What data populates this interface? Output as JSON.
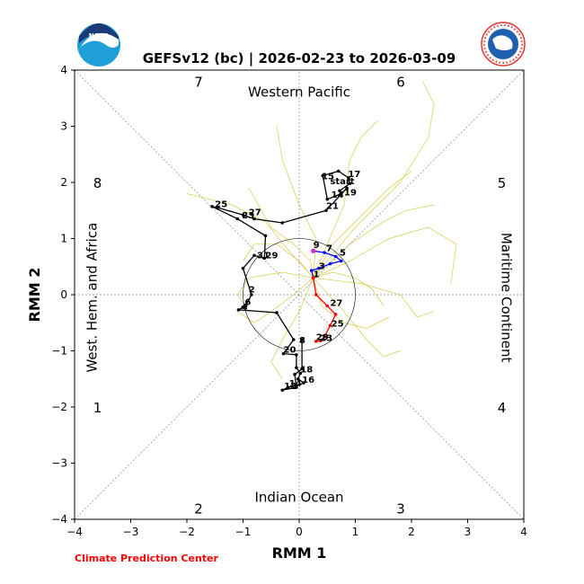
{
  "logos": {
    "left_text": "NOAA",
    "right_text": "NATIONAL WEATHER SERVICE"
  },
  "footer_credit": "Climate Prediction Center",
  "colors": {
    "trajectory_main": "#000000",
    "forecast_early": "#0000ff",
    "forecast_late": "#ff0000",
    "start_point": "#cc33cc",
    "ensemble": "#d4cc4a",
    "footer": "#ff0000"
  },
  "chart_data": {
    "type": "scatter",
    "title": "GEFSv12 (bc) | 2026-02-23 to 2026-03-09",
    "xlabel": "RMM 1",
    "ylabel": "RMM 2",
    "xlim": [
      -4,
      4
    ],
    "ylim": [
      -4,
      4
    ],
    "xticks": [
      "−4",
      "−3",
      "−2",
      "−1",
      "0",
      "1",
      "2",
      "3",
      "4"
    ],
    "yticks": [
      "−4",
      "−3",
      "−2",
      "−1",
      "0",
      "1",
      "2",
      "3",
      "4"
    ],
    "phase_numbers": [
      {
        "label": "1",
        "x": -3.8,
        "y": -2.0
      },
      {
        "label": "2",
        "x": -2.0,
        "y": -3.8
      },
      {
        "label": "3",
        "x": 2.0,
        "y": -3.8
      },
      {
        "label": "4",
        "x": 3.8,
        "y": -2.0
      },
      {
        "label": "5",
        "x": 3.8,
        "y": 2.0
      },
      {
        "label": "6",
        "x": 2.0,
        "y": 3.8
      },
      {
        "label": "7",
        "x": -2.0,
        "y": 3.8
      },
      {
        "label": "8",
        "x": -3.8,
        "y": 2.0
      }
    ],
    "region_labels": [
      {
        "label": "Western Pacific",
        "x": 0.0,
        "y": 3.8,
        "rotate": 0
      },
      {
        "label": "Indian Ocean",
        "x": 0.0,
        "y": -3.8,
        "rotate": 0
      },
      {
        "label": "Maritime Continent",
        "x": 3.8,
        "y": -0.05,
        "rotate": 90
      },
      {
        "label": "West. Hem. and Africa",
        "x": -3.8,
        "y": -0.05,
        "rotate": -90
      }
    ],
    "observed": {
      "name": "",
      "points": [
        [
          0.72,
          1.85
        ],
        [
          0.9,
          1.98
        ],
        [
          0.88,
          2.08
        ],
        [
          0.7,
          2.2
        ],
        [
          0.42,
          2.12
        ],
        [
          0.5,
          1.7
        ],
        [
          0.75,
          1.8
        ],
        [
          0.85,
          1.9
        ],
        [
          0.48,
          1.5
        ],
        [
          -0.3,
          1.28
        ],
        [
          -0.8,
          1.35
        ],
        [
          -1.0,
          1.42
        ],
        [
          -1.45,
          1.55
        ],
        [
          -1.55,
          1.57
        ],
        [
          -1.1,
          1.35
        ],
        [
          -0.6,
          1.05
        ],
        [
          -0.62,
          0.65
        ],
        [
          -0.8,
          0.7
        ],
        [
          -1.0,
          0.47
        ],
        [
          -0.85,
          0.0
        ],
        [
          -0.95,
          -0.2
        ],
        [
          -1.0,
          -0.22
        ],
        [
          -1.08,
          -0.27
        ],
        [
          -0.4,
          -0.32
        ],
        [
          -0.1,
          -0.8
        ],
        [
          -0.28,
          -1.05
        ],
        [
          -0.05,
          -1.07
        ],
        [
          -0.05,
          -1.3
        ],
        [
          0.02,
          -1.4
        ],
        [
          -0.02,
          -1.5
        ],
        [
          0.08,
          -1.57
        ],
        [
          -0.05,
          -1.62
        ],
        [
          -0.2,
          -1.65
        ],
        [
          -0.3,
          -1.7
        ],
        [
          -0.05,
          -1.65
        ],
        [
          -0.08,
          -1.42
        ],
        [
          0.05,
          -1.32
        ],
        [
          0.05,
          -0.8
        ]
      ],
      "labels": [
        {
          "text": "start",
          "x": 0.55,
          "y": 1.97
        },
        {
          "text": "17",
          "x": 0.87,
          "y": 2.1
        },
        {
          "text": "15",
          "x": 0.4,
          "y": 2.06
        },
        {
          "text": "14",
          "x": 0.57,
          "y": 1.73
        },
        {
          "text": "19",
          "x": 0.8,
          "y": 1.77
        },
        {
          "text": "21",
          "x": 0.48,
          "y": 1.53
        },
        {
          "text": "25",
          "x": -1.5,
          "y": 1.56
        },
        {
          "text": "27",
          "x": -0.9,
          "y": 1.42
        },
        {
          "text": "23",
          "x": -1.02,
          "y": 1.36
        },
        {
          "text": "31",
          "x": -0.75,
          "y": 0.65
        },
        {
          "text": "29",
          "x": -0.6,
          "y": 0.65
        },
        {
          "text": "2",
          "x": -0.9,
          "y": 0.04
        },
        {
          "text": "6",
          "x": -0.97,
          "y": -0.18
        },
        {
          "text": "4",
          "x": -1.03,
          "y": -0.27
        },
        {
          "text": "8",
          "x": 0.0,
          "y": -0.86
        },
        {
          "text": "20",
          "x": -0.28,
          "y": -1.03
        },
        {
          "text": "18",
          "x": 0.02,
          "y": -1.38
        },
        {
          "text": "16",
          "x": 0.05,
          "y": -1.57
        },
        {
          "text": "12",
          "x": -0.27,
          "y": -1.68
        },
        {
          "text": "14",
          "x": -0.18,
          "y": -1.63
        }
      ]
    },
    "forecast_blue": {
      "name": "",
      "points": [
        [
          0.25,
          0.78
        ],
        [
          0.45,
          0.75
        ],
        [
          0.65,
          0.68
        ],
        [
          0.75,
          0.6
        ],
        [
          0.55,
          0.55
        ],
        [
          0.35,
          0.47
        ],
        [
          0.22,
          0.43
        ],
        [
          0.25,
          0.3
        ]
      ],
      "labels": [
        {
          "text": "9",
          "x": 0.25,
          "y": 0.83
        },
        {
          "text": "7",
          "x": 0.48,
          "y": 0.78
        },
        {
          "text": "5",
          "x": 0.72,
          "y": 0.7
        },
        {
          "text": "3",
          "x": 0.35,
          "y": 0.46
        },
        {
          "text": "1",
          "x": 0.25,
          "y": 0.31
        }
      ]
    },
    "forecast_red": {
      "name": "",
      "points": [
        [
          0.25,
          0.3
        ],
        [
          0.3,
          0.0
        ],
        [
          0.5,
          -0.2
        ],
        [
          0.65,
          -0.35
        ],
        [
          0.55,
          -0.55
        ],
        [
          0.45,
          -0.75
        ],
        [
          0.38,
          -0.82
        ],
        [
          0.3,
          -0.83
        ]
      ],
      "labels": [
        {
          "text": "27",
          "x": 0.55,
          "y": -0.2
        },
        {
          "text": "25",
          "x": 0.57,
          "y": -0.57
        },
        {
          "text": "23",
          "x": 0.37,
          "y": -0.82
        },
        {
          "text": "29",
          "x": 0.3,
          "y": -0.81
        }
      ]
    },
    "ensemble_members": [
      [
        [
          0.25,
          0.3
        ],
        [
          0.6,
          0.9
        ],
        [
          1.2,
          1.5
        ],
        [
          1.6,
          1.9
        ],
        [
          2.0,
          2.2
        ]
      ],
      [
        [
          0.25,
          0.3
        ],
        [
          0.9,
          0.6
        ],
        [
          1.6,
          1.0
        ],
        [
          2.3,
          1.2
        ],
        [
          2.8,
          0.9
        ],
        [
          2.7,
          0.2
        ]
      ],
      [
        [
          0.25,
          0.3
        ],
        [
          1.0,
          1.2
        ],
        [
          1.8,
          2.0
        ],
        [
          2.3,
          2.8
        ],
        [
          2.4,
          3.4
        ],
        [
          2.2,
          3.8
        ]
      ],
      [
        [
          0.25,
          0.3
        ],
        [
          0.5,
          0.9
        ],
        [
          0.8,
          1.6
        ],
        [
          0.9,
          2.4
        ],
        [
          1.1,
          2.8
        ],
        [
          1.4,
          3.1
        ]
      ],
      [
        [
          0.25,
          0.3
        ],
        [
          -0.2,
          0.8
        ],
        [
          -0.6,
          1.3
        ],
        [
          -1.2,
          1.6
        ],
        [
          -2.0,
          1.8
        ]
      ],
      [
        [
          0.25,
          0.3
        ],
        [
          -0.3,
          0.4
        ],
        [
          -0.9,
          0.3
        ],
        [
          -1.1,
          0.0
        ],
        [
          -0.9,
          -0.3
        ]
      ],
      [
        [
          0.25,
          0.3
        ],
        [
          0.0,
          -0.3
        ],
        [
          -0.3,
          -0.8
        ],
        [
          -0.5,
          -1.2
        ],
        [
          -0.3,
          -1.5
        ]
      ],
      [
        [
          0.25,
          0.3
        ],
        [
          0.8,
          -0.3
        ],
        [
          1.2,
          -0.8
        ],
        [
          1.5,
          -1.1
        ],
        [
          1.8,
          -1.0
        ]
      ],
      [
        [
          0.25,
          0.3
        ],
        [
          1.1,
          0.2
        ],
        [
          1.8,
          0.0
        ],
        [
          2.1,
          -0.4
        ],
        [
          2.4,
          -0.3
        ]
      ],
      [
        [
          0.25,
          0.3
        ],
        [
          0.3,
          1.0
        ],
        [
          0.0,
          1.6
        ],
        [
          -0.3,
          2.4
        ],
        [
          -0.4,
          3.0
        ]
      ],
      [
        [
          0.25,
          0.3
        ],
        [
          0.6,
          0.4
        ],
        [
          1.0,
          0.3
        ],
        [
          1.3,
          0.1
        ],
        [
          1.5,
          -0.2
        ]
      ],
      [
        [
          0.25,
          0.3
        ],
        [
          0.0,
          0.6
        ],
        [
          -0.4,
          0.9
        ],
        [
          -0.8,
          0.9
        ],
        [
          -1.0,
          0.6
        ]
      ],
      [
        [
          0.25,
          0.3
        ],
        [
          0.4,
          -0.2
        ],
        [
          0.8,
          -0.5
        ],
        [
          1.2,
          -0.6
        ],
        [
          1.6,
          -0.4
        ]
      ],
      [
        [
          0.25,
          0.3
        ],
        [
          0.9,
          0.9
        ],
        [
          1.5,
          1.3
        ],
        [
          1.9,
          1.5
        ],
        [
          2.4,
          1.6
        ]
      ],
      [
        [
          0.25,
          0.3
        ],
        [
          -0.1,
          0.0
        ],
        [
          -0.5,
          -0.3
        ],
        [
          -0.8,
          -0.5
        ],
        [
          -1.1,
          -0.3
        ]
      ],
      [
        [
          0.25,
          0.3
        ],
        [
          0.2,
          0.6
        ],
        [
          -0.1,
          0.9
        ],
        [
          -0.5,
          1.2
        ],
        [
          -0.9,
          1.9
        ]
      ]
    ],
    "circle_radius": 1,
    "grid": false
  }
}
